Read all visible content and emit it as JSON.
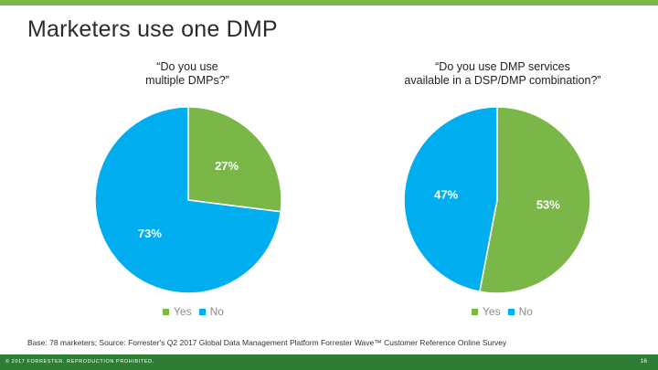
{
  "slide": {
    "title": "Marketers use one DMP",
    "base_note": "Base: 78 marketers; Source: Forrester's Q2 2017 Global Data Management Platform Forrester Wave™ Customer Reference Online Survey",
    "footer_copyright": "© 2017 FORRESTER. REPRODUCTION PROHIBITED.",
    "page_number": "16"
  },
  "colors": {
    "yes": "#7ab648",
    "no": "#00aeef",
    "footer": "#2f7d34"
  },
  "chart_data": [
    {
      "type": "pie",
      "title": "“Do you use\nmultiple DMPs?”",
      "categories": [
        "Yes",
        "No"
      ],
      "values": [
        27,
        73
      ],
      "labels": [
        "27%",
        "73%"
      ],
      "legend": [
        "Yes",
        "No"
      ],
      "legend_position": "bottom"
    },
    {
      "type": "pie",
      "title": "“Do you use DMP services\navailable in a DSP/DMP combination?”",
      "categories": [
        "Yes",
        "No"
      ],
      "values": [
        53,
        47
      ],
      "labels": [
        "53%",
        "47%"
      ],
      "legend": [
        "Yes",
        "No"
      ],
      "legend_position": "bottom"
    }
  ]
}
